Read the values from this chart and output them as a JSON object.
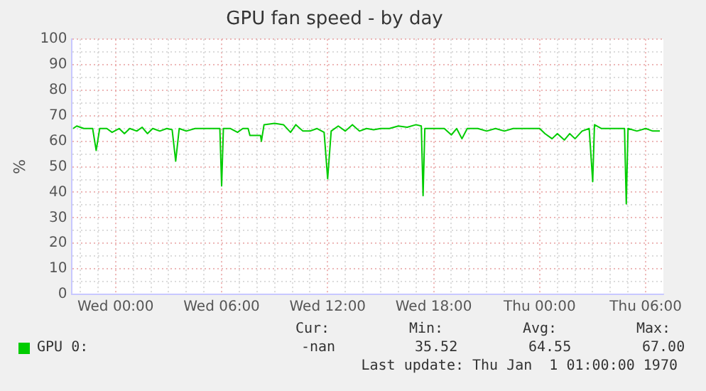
{
  "chart_data": {
    "type": "line",
    "title": "GPU fan speed - by day",
    "ylabel": "%",
    "x": [
      "1969-12-30T21:36",
      "1969-12-30T21:48",
      "1969-12-30T22:12",
      "1969-12-30T22:42",
      "1969-12-30T22:54",
      "1969-12-30T23:06",
      "1969-12-30T23:30",
      "1969-12-30T23:48",
      "1969-12-31T00:12",
      "1969-12-31T00:30",
      "1969-12-31T00:48",
      "1969-12-31T01:12",
      "1969-12-31T01:30",
      "1969-12-31T01:48",
      "1969-12-31T02:06",
      "1969-12-31T02:30",
      "1969-12-31T02:54",
      "1969-12-31T03:12",
      "1969-12-31T03:24",
      "1969-12-31T03:36",
      "1969-12-31T04:00",
      "1969-12-31T04:30",
      "1969-12-31T05:00",
      "1969-12-31T05:30",
      "1969-12-31T05:54",
      "1969-12-31T06:00",
      "1969-12-31T06:06",
      "1969-12-31T06:30",
      "1969-12-31T06:54",
      "1969-12-31T07:12",
      "1969-12-31T07:30",
      "1969-12-31T07:36",
      "1969-12-31T08:12",
      "1969-12-31T08:15",
      "1969-12-31T08:24",
      "1969-12-31T09:00",
      "1969-12-31T09:30",
      "1969-12-31T09:54",
      "1969-12-31T10:12",
      "1969-12-31T10:36",
      "1969-12-31T11:00",
      "1969-12-31T11:24",
      "1969-12-31T11:48",
      "1969-12-31T12:00",
      "1969-12-31T12:12",
      "1969-12-31T12:36",
      "1969-12-31T13:00",
      "1969-12-31T13:24",
      "1969-12-31T13:48",
      "1969-12-31T14:12",
      "1969-12-31T14:36",
      "1969-12-31T15:00",
      "1969-12-31T15:30",
      "1969-12-31T16:00",
      "1969-12-31T16:30",
      "1969-12-31T17:00",
      "1969-12-31T17:18",
      "1969-12-31T17:24",
      "1969-12-31T17:30",
      "1969-12-31T18:00",
      "1969-12-31T18:36",
      "1969-12-31T19:00",
      "1969-12-31T19:18",
      "1969-12-31T19:36",
      "1969-12-31T19:54",
      "1969-12-31T20:30",
      "1969-12-31T21:00",
      "1969-12-31T21:30",
      "1969-12-31T22:00",
      "1969-12-31T22:30",
      "1969-12-31T23:00",
      "1970-01-01T00:00",
      "1970-01-01T00:18",
      "1970-01-01T00:42",
      "1970-01-01T01:00",
      "1970-01-01T01:24",
      "1970-01-01T01:42",
      "1970-01-01T02:00",
      "1970-01-01T02:24",
      "1970-01-01T02:48",
      "1970-01-01T03:00",
      "1970-01-01T03:06",
      "1970-01-01T03:30",
      "1970-01-01T04:00",
      "1970-01-01T04:30",
      "1970-01-01T04:48",
      "1970-01-01T04:54",
      "1970-01-01T05:00",
      "1970-01-01T05:30",
      "1970-01-01T06:00",
      "1970-01-01T06:24",
      "1970-01-01T06:48"
    ],
    "series": [
      {
        "name": "GPU 0:",
        "color": "#00cc00",
        "values": [
          65,
          66,
          65,
          65,
          56.4,
          65,
          65,
          63.5,
          65,
          63,
          65,
          64,
          65.5,
          63,
          65,
          64,
          65,
          64.5,
          52.2,
          65,
          64,
          65,
          65,
          65,
          65,
          42.5,
          65,
          65,
          63.5,
          65,
          65,
          62.3,
          62.3,
          60,
          66.5,
          67,
          66.5,
          63.5,
          66.5,
          64,
          64,
          65,
          63.5,
          45.3,
          64,
          66,
          64,
          66.5,
          64,
          65,
          64.5,
          65,
          65,
          66,
          65.5,
          66.5,
          66,
          38.7,
          65,
          65,
          65,
          62.5,
          65,
          61,
          65,
          65,
          64,
          65,
          64,
          65,
          65,
          65,
          63,
          61,
          63,
          60.5,
          63,
          61,
          64,
          65,
          44.2,
          66.5,
          65,
          65,
          65,
          65,
          35.5,
          65,
          64,
          65,
          64,
          64
        ]
      }
    ],
    "xlim": [
      "1969-12-30T21:30",
      "1970-01-01T07:00"
    ],
    "xticks": [
      {
        "value": "1969-12-30T22:00",
        "label": null
      },
      {
        "value": "1969-12-30T23:00",
        "label": null
      },
      {
        "value": "1969-12-31T00:00",
        "label": "Wed 00:00"
      },
      {
        "value": "1969-12-31T01:00",
        "label": null
      },
      {
        "value": "1969-12-31T02:00",
        "label": null
      },
      {
        "value": "1969-12-31T03:00",
        "label": null
      },
      {
        "value": "1969-12-31T04:00",
        "label": null
      },
      {
        "value": "1969-12-31T05:00",
        "label": null
      },
      {
        "value": "1969-12-31T06:00",
        "label": "Wed 06:00"
      },
      {
        "value": "1969-12-31T07:00",
        "label": null
      },
      {
        "value": "1969-12-31T08:00",
        "label": null
      },
      {
        "value": "1969-12-31T09:00",
        "label": null
      },
      {
        "value": "1969-12-31T10:00",
        "label": null
      },
      {
        "value": "1969-12-31T11:00",
        "label": null
      },
      {
        "value": "1969-12-31T12:00",
        "label": "Wed 12:00"
      },
      {
        "value": "1969-12-31T13:00",
        "label": null
      },
      {
        "value": "1969-12-31T14:00",
        "label": null
      },
      {
        "value": "1969-12-31T15:00",
        "label": null
      },
      {
        "value": "1969-12-31T16:00",
        "label": null
      },
      {
        "value": "1969-12-31T17:00",
        "label": null
      },
      {
        "value": "1969-12-31T18:00",
        "label": "Wed 18:00"
      },
      {
        "value": "1969-12-31T19:00",
        "label": null
      },
      {
        "value": "1969-12-31T20:00",
        "label": null
      },
      {
        "value": "1969-12-31T21:00",
        "label": null
      },
      {
        "value": "1969-12-31T22:00",
        "label": null
      },
      {
        "value": "1969-12-31T23:00",
        "label": null
      },
      {
        "value": "1970-01-01T00:00",
        "label": "Thu 00:00"
      },
      {
        "value": "1970-01-01T01:00",
        "label": null
      },
      {
        "value": "1970-01-01T02:00",
        "label": null
      },
      {
        "value": "1970-01-01T03:00",
        "label": null
      },
      {
        "value": "1970-01-01T04:00",
        "label": null
      },
      {
        "value": "1970-01-01T05:00",
        "label": null
      },
      {
        "value": "1970-01-01T06:00",
        "label": "Thu 06:00"
      }
    ],
    "ylim": [
      0,
      100
    ],
    "yticks": [
      0,
      {
        "value": 5,
        "label": null
      },
      10,
      {
        "value": 15,
        "label": null
      },
      20,
      {
        "value": 25,
        "label": null
      },
      30,
      {
        "value": 35,
        "label": null
      },
      40,
      {
        "value": 45,
        "label": null
      },
      50,
      {
        "value": 55,
        "label": null
      },
      60,
      {
        "value": 65,
        "label": null
      },
      70,
      {
        "value": 75,
        "label": null
      },
      80,
      {
        "value": 85,
        "label": null
      },
      90,
      {
        "value": 95,
        "label": null
      },
      100
    ],
    "grid": true,
    "legend": "bottom left",
    "marker": "none",
    "line_style": "solid",
    "annotations": [
      "Cur:",
      "Min:",
      "Avg:",
      "Max:",
      "-nan",
      "35.52",
      "64.55",
      "67.00",
      "Last update: Thu Jan  1 01:00:00 1970"
    ]
  }
}
